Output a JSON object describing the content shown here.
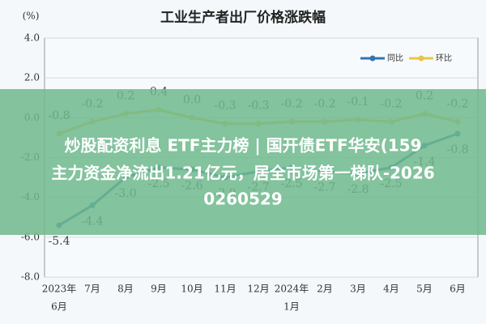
{
  "chart_data": {
    "type": "line",
    "title": "工业生产者出厂价格涨跌幅",
    "unit_label": "(%)",
    "categories": [
      [
        "2023年",
        "6月"
      ],
      [
        "7月"
      ],
      [
        "8月"
      ],
      [
        "9月"
      ],
      [
        "10月"
      ],
      [
        "11月"
      ],
      [
        "12月"
      ],
      [
        "2024年",
        "1月"
      ],
      [
        "2月"
      ],
      [
        "3月"
      ],
      [
        "4月"
      ],
      [
        "5月"
      ],
      [
        "6月"
      ]
    ],
    "series": [
      {
        "name": "同比",
        "color": "#2e75b6",
        "values": [
          -5.4,
          -4.4,
          -3.0,
          -2.5,
          -2.6,
          -3.0,
          -2.7,
          -2.5,
          -2.7,
          -2.8,
          -2.5,
          -1.4,
          -0.8
        ],
        "value_labels": [
          "-5.4",
          "-4.4",
          "-3.0",
          "-2.5",
          "-2.6",
          "-3.0",
          "-2.7",
          "-2.5",
          "-2.7",
          "-2.8",
          "-2.5",
          "-1.4",
          "-0.8"
        ]
      },
      {
        "name": "环比",
        "color": "#e8c547",
        "values": [
          -0.8,
          -0.2,
          0.2,
          0.4,
          0.0,
          -0.3,
          -0.3,
          -0.2,
          -0.2,
          -0.1,
          -0.2,
          0.2,
          -0.2
        ],
        "value_labels": [
          "-0.8",
          "-0.2",
          "0.2",
          "0.4",
          "0.0",
          "-0.3",
          "-0.3",
          "-0.2",
          "-0.2",
          "-0.1",
          "-0.2",
          "0.2",
          "-0.2"
        ]
      }
    ],
    "ylim": [
      -8.0,
      4.0
    ],
    "yticks": [
      {
        "value": -8,
        "label": "-8.0"
      },
      {
        "value": -6,
        "label": "-6.0"
      },
      {
        "value": -4,
        "label": "-4.0"
      },
      {
        "value": -2,
        "label": "-2.0"
      },
      {
        "value": 0,
        "label": "0.0"
      },
      {
        "value": 2,
        "label": "2.0"
      },
      {
        "value": 4,
        "label": "4.0"
      }
    ],
    "grid": true,
    "legend": "top-right"
  },
  "overlay": {
    "lines": [
      "炒股配资利息 ETF主力榜 | 国开债ETF华安(159",
      "主力资金净流出1.21亿元，居全市场第一梯队-2026",
      "0260529"
    ]
  }
}
